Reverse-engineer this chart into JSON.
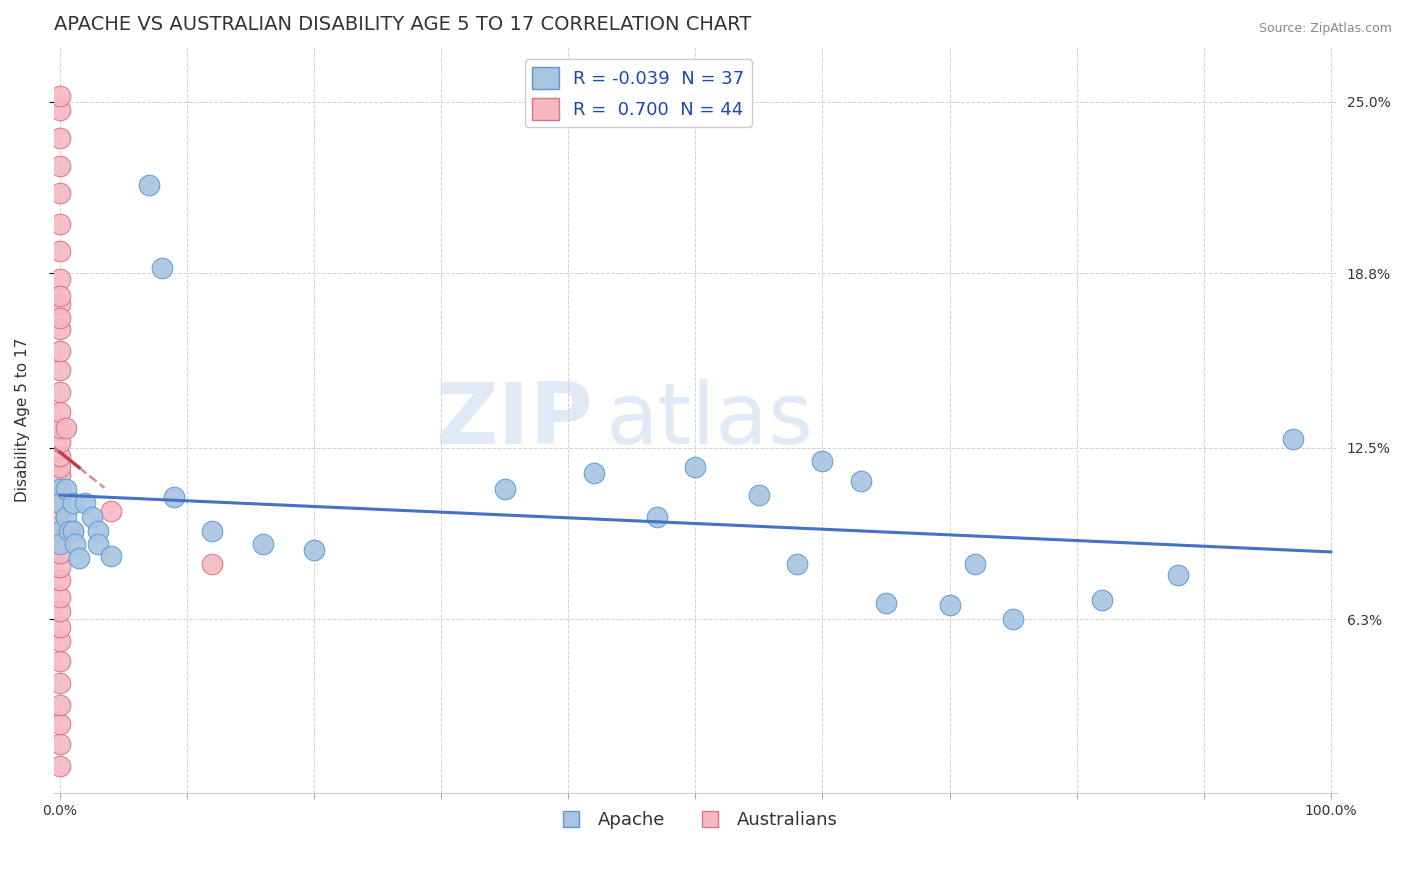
{
  "title": "APACHE VS AUSTRALIAN DISABILITY AGE 5 TO 17 CORRELATION CHART",
  "source": "Source: ZipAtlas.com",
  "ylabel": "Disability Age 5 to 17",
  "r_apache": -0.039,
  "n_apache": 37,
  "r_australians": 0.7,
  "n_australians": 44,
  "xlim": [
    0.0,
    1.0
  ],
  "ytick_values": [
    0.063,
    0.125,
    0.188,
    0.25
  ],
  "ytick_labels": [
    "6.3%",
    "12.5%",
    "18.8%",
    "25.0%"
  ],
  "xtick_values": [
    0.0,
    0.1,
    0.2,
    0.3,
    0.4,
    0.5,
    0.6,
    0.7,
    0.8,
    0.9,
    1.0
  ],
  "watermark_zip": "ZIP",
  "watermark_atlas": "atlas",
  "apache_color": "#a8c4e0",
  "apache_edge": "#5b9bd5",
  "australians_color": "#f4b8c1",
  "australians_edge": "#d9748a",
  "trendline_apache_color": "#4472c4",
  "trendline_australians_color": "#c0404a",
  "apache_points_x": [
    0.0,
    0.0,
    0.0,
    0.0,
    0.005,
    0.005,
    0.007,
    0.01,
    0.01,
    0.012,
    0.015,
    0.02,
    0.025,
    0.03,
    0.03,
    0.04,
    0.07,
    0.08,
    0.09,
    0.12,
    0.16,
    0.2,
    0.35,
    0.42,
    0.47,
    0.5,
    0.55,
    0.58,
    0.6,
    0.63,
    0.65,
    0.7,
    0.72,
    0.75,
    0.82,
    0.88,
    0.97
  ],
  "apache_points_y": [
    0.11,
    0.105,
    0.095,
    0.09,
    0.11,
    0.1,
    0.095,
    0.105,
    0.095,
    0.09,
    0.085,
    0.105,
    0.1,
    0.095,
    0.09,
    0.086,
    0.22,
    0.19,
    0.107,
    0.095,
    0.09,
    0.088,
    0.11,
    0.116,
    0.1,
    0.118,
    0.108,
    0.083,
    0.12,
    0.113,
    0.069,
    0.068,
    0.083,
    0.063,
    0.07,
    0.079,
    0.128
  ],
  "australians_points_x": [
    0.0,
    0.0,
    0.0,
    0.0,
    0.0,
    0.0,
    0.0,
    0.0,
    0.0,
    0.0,
    0.0,
    0.0,
    0.0,
    0.0,
    0.0,
    0.0,
    0.0,
    0.0,
    0.0,
    0.0,
    0.0,
    0.0,
    0.0,
    0.0,
    0.0,
    0.0,
    0.0,
    0.0,
    0.0,
    0.0,
    0.0,
    0.0,
    0.0,
    0.0,
    0.0,
    0.0,
    0.0,
    0.0,
    0.0,
    0.0,
    0.005,
    0.01,
    0.04,
    0.12
  ],
  "australians_points_y": [
    0.01,
    0.018,
    0.025,
    0.032,
    0.04,
    0.048,
    0.055,
    0.06,
    0.066,
    0.071,
    0.077,
    0.082,
    0.087,
    0.091,
    0.095,
    0.099,
    0.103,
    0.107,
    0.11,
    0.115,
    0.118,
    0.122,
    0.127,
    0.132,
    0.138,
    0.145,
    0.153,
    0.16,
    0.168,
    0.177,
    0.186,
    0.196,
    0.206,
    0.217,
    0.227,
    0.237,
    0.247,
    0.252,
    0.18,
    0.172,
    0.132,
    0.095,
    0.102,
    0.083
  ],
  "background_color": "#ffffff",
  "grid_color": "#cccccc",
  "title_fontsize": 14,
  "label_fontsize": 11,
  "tick_fontsize": 10,
  "legend_fontsize": 13
}
